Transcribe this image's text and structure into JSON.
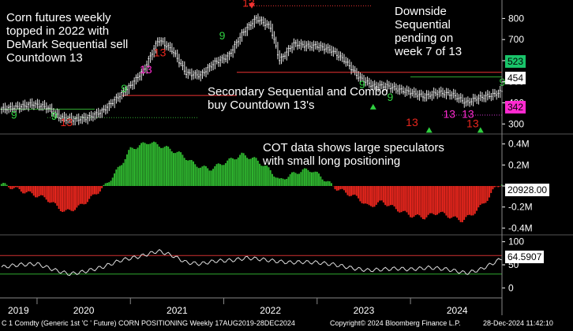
{
  "chart_data": [
    {
      "type": "candlestick",
      "title": "",
      "ylabel": "",
      "ylim": [
        260,
        880
      ],
      "y_ticks": [
        300,
        400,
        500,
        600,
        700,
        800
      ],
      "x_ticks": [
        "2019",
        "2020",
        "2021",
        "2022",
        "2023",
        "2024"
      ],
      "price_path": [
        [
          2019.62,
          370
        ],
        [
          2019.8,
          380
        ],
        [
          2019.95,
          395
        ],
        [
          2020.1,
          380
        ],
        [
          2020.25,
          330
        ],
        [
          2020.4,
          320
        ],
        [
          2020.55,
          330
        ],
        [
          2020.7,
          360
        ],
        [
          2020.85,
          420
        ],
        [
          2021.0,
          480
        ],
        [
          2021.15,
          560
        ],
        [
          2021.3,
          700
        ],
        [
          2021.45,
          650
        ],
        [
          2021.6,
          540
        ],
        [
          2021.75,
          530
        ],
        [
          2021.9,
          590
        ],
        [
          2022.05,
          620
        ],
        [
          2022.2,
          730
        ],
        [
          2022.35,
          800
        ],
        [
          2022.5,
          760
        ],
        [
          2022.6,
          600
        ],
        [
          2022.75,
          680
        ],
        [
          2022.9,
          670
        ],
        [
          2023.0,
          670
        ],
        [
          2023.15,
          650
        ],
        [
          2023.3,
          600
        ],
        [
          2023.45,
          520
        ],
        [
          2023.6,
          480
        ],
        [
          2023.75,
          480
        ],
        [
          2023.9,
          460
        ],
        [
          2024.0,
          450
        ],
        [
          2024.15,
          430
        ],
        [
          2024.3,
          450
        ],
        [
          2024.45,
          440
        ],
        [
          2024.6,
          400
        ],
        [
          2024.7,
          420
        ],
        [
          2024.8,
          430
        ],
        [
          2024.9,
          440
        ],
        [
          2024.98,
          454
        ]
      ],
      "last_value": "454",
      "markers": [
        "523",
        "342"
      ],
      "annotations": [
        "Corn futures weekly\ntopped in 2022 with\nDeMark Sequential sell\nCountdown 13",
        "Downside\nSequential\npending on\nweek 7 of 13",
        "Secondary Sequential and Combo\nbuy Countdown 13's"
      ],
      "labels": [
        "9",
        "13"
      ]
    },
    {
      "type": "bar",
      "title": "",
      "ylim": [
        -0.45,
        0.45
      ],
      "y_ticks": [
        "0.4M",
        "0.2M",
        "0",
        "-0.2M",
        "-0.4M"
      ],
      "tick_values": [
        0.4,
        0.2,
        0,
        -0.2,
        -0.4
      ],
      "last_value": "20928.00",
      "series_path": [
        [
          2019.62,
          0.02
        ],
        [
          2019.85,
          -0.05
        ],
        [
          2020.1,
          -0.12
        ],
        [
          2020.3,
          -0.25
        ],
        [
          2020.45,
          -0.2
        ],
        [
          2020.6,
          -0.1
        ],
        [
          2020.75,
          0.02
        ],
        [
          2020.9,
          0.2
        ],
        [
          2021.0,
          0.35
        ],
        [
          2021.2,
          0.42
        ],
        [
          2021.4,
          0.36
        ],
        [
          2021.55,
          0.3
        ],
        [
          2021.7,
          0.2
        ],
        [
          2021.85,
          0.16
        ],
        [
          2022.0,
          0.22
        ],
        [
          2022.2,
          0.3
        ],
        [
          2022.35,
          0.25
        ],
        [
          2022.5,
          0.15
        ],
        [
          2022.6,
          0.05
        ],
        [
          2022.7,
          0.1
        ],
        [
          2022.85,
          0.15
        ],
        [
          2022.95,
          0.15
        ],
        [
          2023.1,
          0.05
        ],
        [
          2023.2,
          -0.02
        ],
        [
          2023.3,
          -0.06
        ],
        [
          2023.45,
          -0.12
        ],
        [
          2023.55,
          -0.2
        ],
        [
          2023.7,
          -0.15
        ],
        [
          2023.85,
          -0.22
        ],
        [
          2024.0,
          -0.28
        ],
        [
          2024.15,
          -0.3
        ],
        [
          2024.3,
          -0.25
        ],
        [
          2024.45,
          -0.3
        ],
        [
          2024.55,
          -0.33
        ],
        [
          2024.65,
          -0.28
        ],
        [
          2024.75,
          -0.2
        ],
        [
          2024.85,
          -0.1
        ],
        [
          2024.92,
          0.0
        ],
        [
          2024.98,
          0.02
        ]
      ],
      "annotations": [
        "COT data shows large speculators\nwith small long positioning"
      ]
    },
    {
      "type": "line",
      "title": "",
      "ylim": [
        -8,
        108
      ],
      "y_ticks": [
        0,
        50,
        100
      ],
      "reference_levels": [
        70,
        30
      ],
      "last_value": "64.5907",
      "series_path": [
        [
          2019.62,
          45
        ],
        [
          2019.8,
          50
        ],
        [
          2020.0,
          52
        ],
        [
          2020.2,
          38
        ],
        [
          2020.35,
          30
        ],
        [
          2020.5,
          35
        ],
        [
          2020.7,
          45
        ],
        [
          2020.9,
          60
        ],
        [
          2021.1,
          68
        ],
        [
          2021.3,
          80
        ],
        [
          2021.45,
          70
        ],
        [
          2021.6,
          55
        ],
        [
          2021.75,
          52
        ],
        [
          2021.9,
          58
        ],
        [
          2022.1,
          60
        ],
        [
          2022.25,
          65
        ],
        [
          2022.4,
          62
        ],
        [
          2022.55,
          58
        ],
        [
          2022.7,
          55
        ],
        [
          2022.85,
          56
        ],
        [
          2023.0,
          55
        ],
        [
          2023.2,
          50
        ],
        [
          2023.4,
          42
        ],
        [
          2023.55,
          38
        ],
        [
          2023.7,
          40
        ],
        [
          2023.85,
          42
        ],
        [
          2024.0,
          40
        ],
        [
          2024.2,
          44
        ],
        [
          2024.4,
          40
        ],
        [
          2024.6,
          32
        ],
        [
          2024.75,
          40
        ],
        [
          2024.9,
          55
        ],
        [
          2024.98,
          64.6
        ]
      ]
    }
  ],
  "footer": {
    "left": "C 1 Comdty (Generic 1st 'C ' Future) CORN POSITIONING  Weekly 17AUG2019-28DEC2024",
    "center": "Copyright© 2024 Bloomberg Finance L.P.",
    "right": "28-Dec-2024 11:42:10"
  },
  "colors": {
    "price": "#e8e8e8",
    "positive_bar": "#2fb52f",
    "negative_bar": "#e8261d",
    "oscillator": "#e0e0e0",
    "overbought": "#d03030",
    "oversold": "#2faa2f",
    "badge_green": "#19c46a",
    "badge_magenta": "#ff2ad0"
  }
}
